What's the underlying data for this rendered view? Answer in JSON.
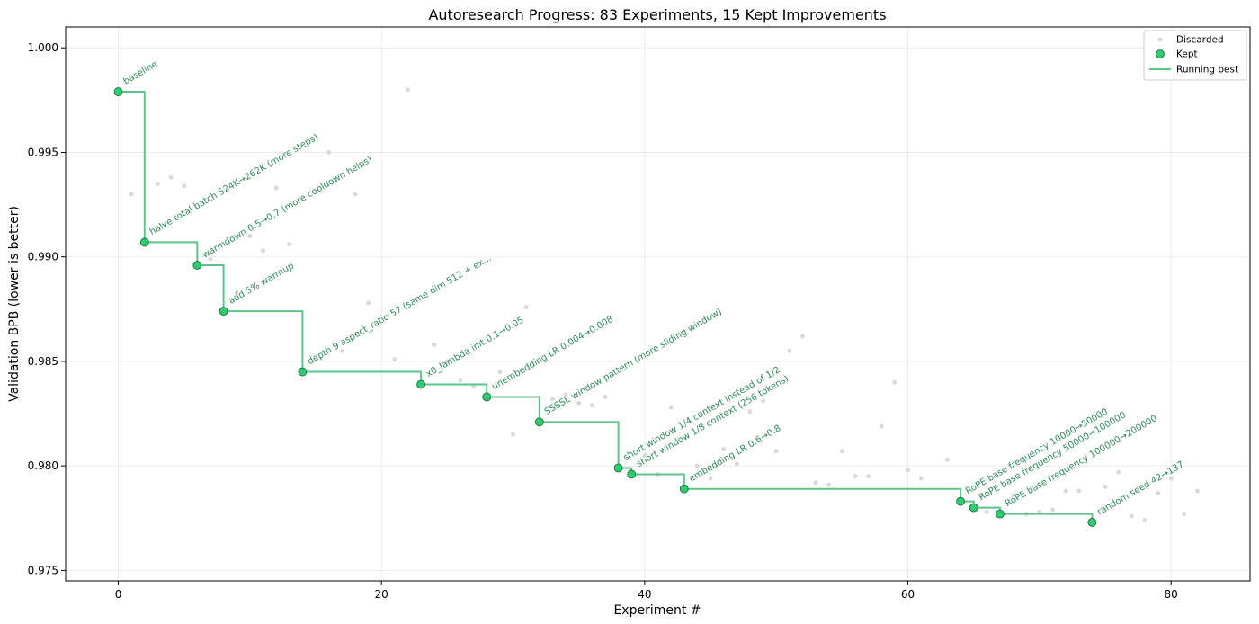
{
  "chart_data": {
    "type": "scatter",
    "title": "Autoresearch Progress: 83 Experiments, 15 Kept Improvements",
    "xlabel": "Experiment #",
    "ylabel": "Validation BPB (lower is better)",
    "xlim": [
      -4,
      86
    ],
    "ylim": [
      0.9745,
      1.001
    ],
    "x_ticks": [
      0,
      20,
      40,
      60,
      80
    ],
    "y_ticks": [
      0.975,
      0.98,
      0.985,
      0.99,
      0.995,
      1.0
    ],
    "x_tick_labels": [
      "0",
      "20",
      "40",
      "60",
      "80"
    ],
    "y_tick_labels": [
      "0.975",
      "0.980",
      "0.985",
      "0.990",
      "0.995",
      "1.000"
    ],
    "grid": true,
    "legend_position": "top-right",
    "colors": {
      "kept": "#2ecc71",
      "line": "#5ec48c",
      "discarded": "#d9d9d9",
      "annotation": "#2e8b57"
    },
    "series": [
      {
        "name": "Discarded",
        "x": [
          1,
          3,
          4,
          5,
          7,
          9,
          10,
          11,
          12,
          13,
          16,
          17,
          18,
          19,
          21,
          22,
          24,
          25,
          26,
          27,
          29,
          30,
          31,
          33,
          34,
          35,
          36,
          37,
          40,
          41,
          42,
          44,
          45,
          46,
          47,
          48,
          49,
          50,
          51,
          52,
          53,
          54,
          55,
          56,
          57,
          58,
          59,
          60,
          61,
          63,
          66,
          68,
          69,
          70,
          71,
          72,
          73,
          75,
          76,
          77,
          78,
          79,
          80,
          81,
          82
        ],
        "y": [
          0.993,
          0.9935,
          0.9938,
          0.9934,
          0.9899,
          0.9883,
          0.991,
          0.9903,
          0.9933,
          0.9906,
          0.995,
          0.9855,
          0.993,
          0.9878,
          0.9851,
          0.998,
          0.9858,
          0.985,
          0.9841,
          0.9838,
          0.9845,
          0.9815,
          0.9876,
          0.9832,
          0.9834,
          0.983,
          0.9829,
          0.9833,
          0.9805,
          0.9796,
          0.9828,
          0.98,
          0.9794,
          0.9808,
          0.9801,
          0.9826,
          0.9831,
          0.9807,
          0.9855,
          0.9862,
          0.9792,
          0.9791,
          0.9807,
          0.9795,
          0.9795,
          0.9819,
          0.984,
          0.9798,
          0.9794,
          0.9803,
          0.9778,
          0.9786,
          0.9777,
          0.9778,
          0.9779,
          0.9788,
          0.9788,
          0.979,
          0.9797,
          0.9776,
          0.9774,
          0.9787,
          0.9794,
          0.9777,
          0.9788
        ]
      },
      {
        "name": "Kept",
        "x": [
          0,
          2,
          6,
          8,
          14,
          23,
          28,
          32,
          38,
          39,
          43,
          64,
          65,
          67,
          74
        ],
        "y": [
          0.9979,
          0.9907,
          0.9896,
          0.9874,
          0.9845,
          0.9839,
          0.9833,
          0.9821,
          0.9799,
          0.9796,
          0.9789,
          0.9783,
          0.978,
          0.9777,
          0.9773
        ],
        "labels": [
          "baseline",
          "halve total batch 524K→262K (more steps)",
          "warmdown 0.5→0.7 (more cooldown helps)",
          "add 5% warmup",
          "depth 9 aspect_ratio 57 (same dim 512 + ex...",
          "x0_lambda init 0.1→0.05",
          "unembedding LR 0.004→0.008",
          "SSSSL window pattern (more sliding window)",
          "short window 1/4 context instead of 1/2",
          "short window 1/8 context (256 tokens)",
          "embedding LR 0.6→0.8",
          "RoPE base frequency 10000→50000",
          "RoPE base frequency 50000→100000",
          "RoPE base frequency 100000→200000",
          "random seed 42→137"
        ]
      },
      {
        "name": "Running best",
        "x_end": 74
      }
    ]
  }
}
